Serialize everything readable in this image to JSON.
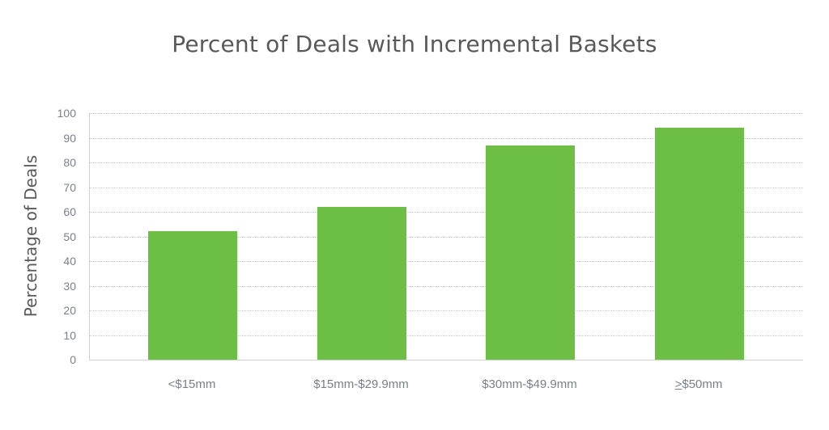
{
  "chart_data": {
    "type": "bar",
    "title": "Percent of Deals with Incremental Baskets",
    "xlabel": "",
    "ylabel": "Percentage of Deals",
    "categories": [
      "<$15mm",
      "$15mm-$29.9mm",
      "$30mm-$49.9mm",
      "≥$50mm"
    ],
    "values": [
      52,
      62,
      87,
      94
    ],
    "ylim": [
      0,
      100
    ],
    "yticks": [
      0,
      10,
      20,
      30,
      40,
      50,
      60,
      70,
      80,
      90,
      100
    ],
    "grid": true,
    "legend": null,
    "bar_color": "#6dbe45"
  },
  "labels": {
    "title": "Percent of Deals with Incremental Baskets",
    "ylabel": "Percentage of Deals",
    "ticks": [
      "0",
      "10",
      "20",
      "30",
      "40",
      "50",
      "60",
      "70",
      "80",
      "90",
      "100"
    ],
    "x0": "<$15mm",
    "x1": "$15mm-$29.9mm",
    "x2": "$30mm-$49.9mm",
    "x3_sym": ">",
    "x3_rest": "$50mm"
  }
}
